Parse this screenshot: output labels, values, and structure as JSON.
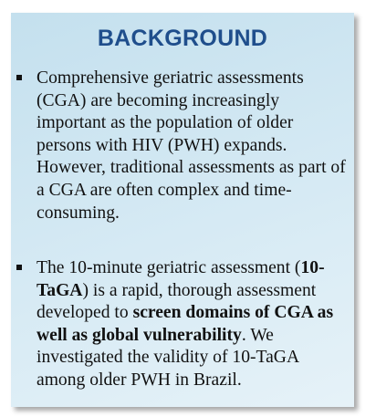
{
  "title": "BACKGROUND",
  "bullets": [
    [
      {
        "text": "Comprehensive geriatric assessments (CGA) are becoming increasingly important as the population of older persons with HIV (PWH) expands. However, traditional assessments as part of a CGA are often complex and time-consuming."
      }
    ],
    [
      {
        "text": "The 10-minute geriatric assessment ("
      },
      {
        "text": "10-TaGA",
        "bold": true
      },
      {
        "text": ") is a rapid, thorough assessment developed to "
      },
      {
        "text": "screen domains of CGA as well as global vulnerability",
        "bold": true
      },
      {
        "text": ". We investigated the validity of 10-TaGA among older PWH in Brazil."
      }
    ]
  ]
}
